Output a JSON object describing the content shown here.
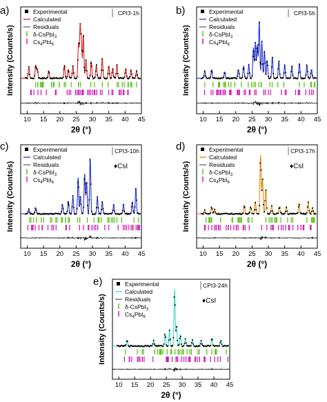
{
  "figure": {
    "common": {
      "xlabel": "2θ (°)",
      "ylabel": "Intensity (Counts/s)",
      "x_ticks": [
        10,
        15,
        20,
        25,
        30,
        35,
        40,
        45
      ],
      "xlim": [
        8,
        45
      ],
      "legend": {
        "experimental": "Experimental",
        "calculated": "Calculated",
        "residuals": "Residuals",
        "phase1": "δ-CsPbI",
        "phase1_sub": "3",
        "phase2": "Cs",
        "phase2_sub1": "4",
        "phase2_mid": "PbI",
        "phase2_sub2": "6"
      },
      "marker_csi": "♦CsI",
      "colors": {
        "phase1_ticks": "#5cc41a",
        "phase2_ticks": "#d11fb8",
        "experimental": "#000000",
        "residual": "#000000"
      }
    }
  },
  "chart_data": [
    {
      "panel": "a)",
      "tag": "CPI3-1h",
      "type": "line",
      "calc_color": "#d42020",
      "has_csi": false,
      "xlabel": "2θ (°)",
      "ylabel": "Intensity (Counts/s)",
      "xlim": [
        8,
        45
      ],
      "peaks": [
        [
          10.5,
          0.18
        ],
        [
          12.6,
          0.22
        ],
        [
          13.1,
          0.15
        ],
        [
          16.6,
          0.12
        ],
        [
          21.4,
          0.22
        ],
        [
          22.6,
          0.14
        ],
        [
          24.0,
          0.2
        ],
        [
          25.7,
          0.55
        ],
        [
          26.2,
          0.82
        ],
        [
          26.6,
          0.6
        ],
        [
          27.2,
          0.72
        ],
        [
          28.0,
          0.3
        ],
        [
          29.6,
          0.28
        ],
        [
          31.2,
          0.22
        ],
        [
          33.0,
          0.32
        ],
        [
          35.0,
          0.2
        ],
        [
          36.2,
          0.16
        ],
        [
          37.5,
          0.22
        ],
        [
          40.2,
          0.15
        ],
        [
          41.8,
          0.14
        ],
        [
          43.5,
          0.12
        ]
      ]
    },
    {
      "panel": "b)",
      "tag": "CPI3-5h",
      "type": "line",
      "calc_color": "#2233cc",
      "has_csi": false,
      "xlabel": "2θ (°)",
      "ylabel": "Intensity (Counts/s)",
      "xlim": [
        8,
        45
      ],
      "peaks": [
        [
          10.5,
          0.12
        ],
        [
          12.6,
          0.14
        ],
        [
          16.6,
          0.1
        ],
        [
          20.8,
          0.14
        ],
        [
          22.4,
          0.2
        ],
        [
          24.0,
          0.22
        ],
        [
          25.4,
          0.5
        ],
        [
          26.0,
          0.58
        ],
        [
          26.6,
          0.55
        ],
        [
          27.2,
          0.95
        ],
        [
          28.0,
          0.6
        ],
        [
          28.8,
          0.45
        ],
        [
          29.6,
          0.3
        ],
        [
          31.2,
          0.35
        ],
        [
          33.2,
          0.28
        ],
        [
          35.0,
          0.22
        ],
        [
          37.2,
          0.2
        ],
        [
          39.5,
          0.24
        ],
        [
          41.8,
          0.22
        ],
        [
          43.2,
          0.14
        ]
      ]
    },
    {
      "panel": "c)",
      "tag": "CPI3-10h",
      "type": "line",
      "calc_color": "#2233cc",
      "has_csi": true,
      "xlabel": "2θ (°)",
      "ylabel": "Intensity (Counts/s)",
      "xlim": [
        8,
        45
      ],
      "peaks": [
        [
          10.5,
          0.08
        ],
        [
          12.6,
          0.1
        ],
        [
          20.8,
          0.15
        ],
        [
          22.6,
          0.22
        ],
        [
          24.0,
          0.3
        ],
        [
          25.6,
          0.62
        ],
        [
          26.3,
          0.3
        ],
        [
          27.6,
          0.68
        ],
        [
          28.2,
          0.55
        ],
        [
          29.3,
          0.95
        ],
        [
          31.5,
          0.28
        ],
        [
          33.0,
          0.2
        ],
        [
          36.5,
          0.15
        ],
        [
          39.5,
          0.15
        ],
        [
          42.2,
          0.2
        ],
        [
          43.3,
          0.44
        ]
      ]
    },
    {
      "panel": "d)",
      "tag": "CPI3-17h",
      "type": "line",
      "calc_color": "#e08a10",
      "has_csi": true,
      "xlabel": "2θ (°)",
      "ylabel": "Intensity (Counts/s)",
      "xlim": [
        8,
        45
      ],
      "peaks": [
        [
          10.5,
          0.06
        ],
        [
          12.6,
          0.12
        ],
        [
          13.5,
          0.08
        ],
        [
          22.6,
          0.14
        ],
        [
          24.6,
          0.12
        ],
        [
          26.0,
          0.2
        ],
        [
          27.6,
          1.0
        ],
        [
          28.2,
          0.6
        ],
        [
          29.2,
          0.42
        ],
        [
          31.0,
          0.14
        ],
        [
          33.4,
          0.12
        ],
        [
          35.5,
          0.12
        ],
        [
          39.4,
          0.18
        ],
        [
          42.2,
          0.2
        ],
        [
          43.5,
          0.1
        ]
      ]
    },
    {
      "panel": "e)",
      "tag": "CPI3-24h",
      "type": "line",
      "calc_color": "#3ad9c0",
      "has_csi": true,
      "xlabel": "2θ (°)",
      "ylabel": "Intensity (Counts/s)",
      "xlim": [
        8,
        45
      ],
      "peaks": [
        [
          12.6,
          0.1
        ],
        [
          21.0,
          0.1
        ],
        [
          24.6,
          0.22
        ],
        [
          26.0,
          0.28
        ],
        [
          27.6,
          1.0
        ],
        [
          28.2,
          0.35
        ],
        [
          29.4,
          0.2
        ],
        [
          31.0,
          0.12
        ],
        [
          33.2,
          0.1
        ],
        [
          36.0,
          0.1
        ],
        [
          39.4,
          0.14
        ],
        [
          42.2,
          0.1
        ]
      ]
    }
  ]
}
